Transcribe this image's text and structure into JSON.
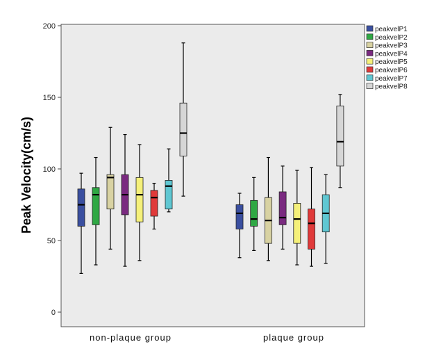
{
  "chart_data": {
    "type": "boxplot",
    "title": "",
    "xlabel": "",
    "ylabel": "Peak Velocity(cm/s)",
    "ylim": [
      0,
      200
    ],
    "yticks": [
      0,
      50,
      100,
      150,
      200
    ],
    "categories": [
      "non-plaque group",
      "plaque group"
    ],
    "series": [
      {
        "name": "peakvelP1",
        "color": "#3a4fa0",
        "boxes": [
          {
            "min": 27,
            "q1": 60,
            "median": 75,
            "q3": 86,
            "max": 97
          },
          {
            "min": 38,
            "q1": 58,
            "median": 69,
            "q3": 75,
            "max": 83
          }
        ]
      },
      {
        "name": "peakvelP2",
        "color": "#2fa844",
        "boxes": [
          {
            "min": 33,
            "q1": 61,
            "median": 82,
            "q3": 87,
            "max": 108
          },
          {
            "min": 43,
            "q1": 60,
            "median": 65,
            "q3": 78,
            "max": 94
          }
        ]
      },
      {
        "name": "peakvelP3",
        "color": "#d8d2a2",
        "boxes": [
          {
            "min": 44,
            "q1": 72,
            "median": 94,
            "q3": 96,
            "max": 129
          },
          {
            "min": 36,
            "q1": 48,
            "median": 64,
            "q3": 80,
            "max": 108
          }
        ]
      },
      {
        "name": "peakvelP4",
        "color": "#7a2a80",
        "boxes": [
          {
            "min": 32,
            "q1": 68,
            "median": 82,
            "q3": 96,
            "max": 124
          },
          {
            "min": 44,
            "q1": 61,
            "median": 66,
            "q3": 84,
            "max": 102
          }
        ]
      },
      {
        "name": "peakvelP5",
        "color": "#f5f07a",
        "boxes": [
          {
            "min": 36,
            "q1": 63,
            "median": 82,
            "q3": 94,
            "max": 117
          },
          {
            "min": 33,
            "q1": 48,
            "median": 65,
            "q3": 76,
            "max": 99
          }
        ]
      },
      {
        "name": "peakvelP6",
        "color": "#e03a3a",
        "boxes": [
          {
            "min": 58,
            "q1": 67,
            "median": 80,
            "q3": 85,
            "max": 90
          },
          {
            "min": 32,
            "q1": 44,
            "median": 62,
            "q3": 72,
            "max": 101
          }
        ]
      },
      {
        "name": "peakvelP7",
        "color": "#5fc7d2",
        "boxes": [
          {
            "min": 70,
            "q1": 72,
            "median": 88,
            "q3": 92,
            "max": 114
          },
          {
            "min": 34,
            "q1": 56,
            "median": 69,
            "q3": 82,
            "max": 96
          }
        ]
      },
      {
        "name": "peakvelP8",
        "color": "#d6d6d6",
        "boxes": [
          {
            "min": 81,
            "q1": 109,
            "median": 125,
            "q3": 146,
            "max": 188
          },
          {
            "min": 87,
            "q1": 102,
            "median": 119,
            "q3": 144,
            "max": 152
          }
        ]
      }
    ],
    "legend_position": "right"
  },
  "colors": {
    "plot_background": "#ebebeb",
    "axis": "#444444"
  }
}
